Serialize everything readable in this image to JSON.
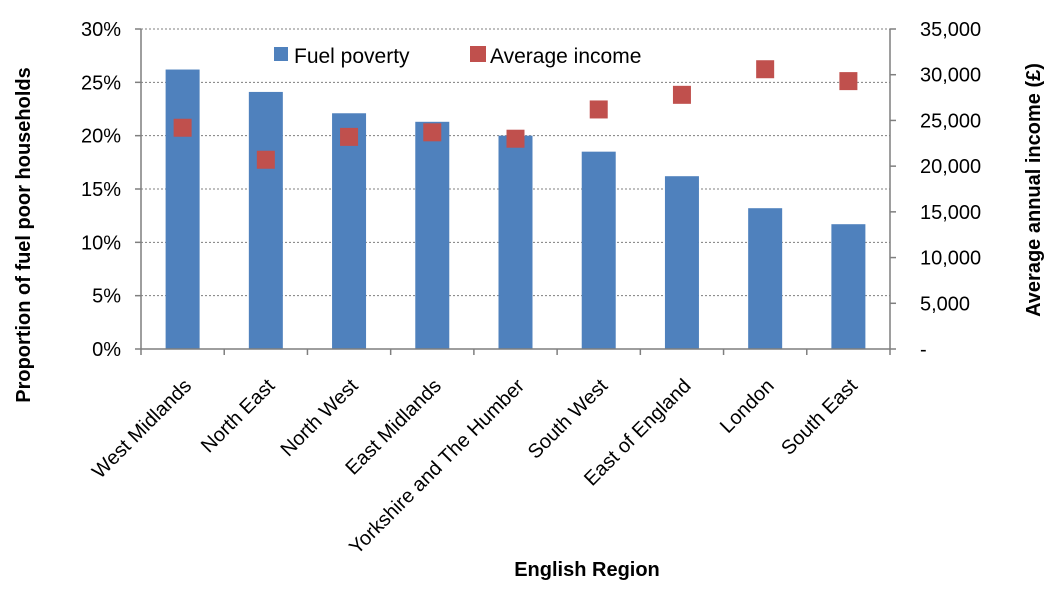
{
  "chart_data": {
    "type": "bar",
    "categories": [
      "West Midlands",
      "North East",
      "North West",
      "East Midlands",
      "Yorkshire and The  Humber",
      "South West",
      "East of England",
      "London",
      "South East"
    ],
    "series": [
      {
        "name": "Fuel poverty",
        "kind": "bar",
        "axis": "left",
        "color": "#4f81bd",
        "values": [
          0.262,
          0.241,
          0.221,
          0.213,
          0.2,
          0.185,
          0.162,
          0.132,
          0.117
        ]
      },
      {
        "name": "Average income",
        "kind": "marker",
        "axis": "right",
        "color": "#c0504d",
        "values": [
          24200,
          20700,
          23200,
          23700,
          23000,
          26200,
          27800,
          30600,
          29300
        ]
      }
    ],
    "xlabel": "English Region",
    "ylabel": "Proportion of fuel  poor households",
    "y2label": "Average annual  income (£)",
    "ylim": [
      0,
      0.3
    ],
    "y2lim": [
      0,
      35000
    ],
    "yticks": [
      "0%",
      "5%",
      "10%",
      "15%",
      "20%",
      "25%",
      "30%"
    ],
    "y2ticks": [
      "-",
      "5,000",
      "10,000",
      "15,000",
      "20,000",
      "25,000",
      "30,000",
      "35,000"
    ],
    "grid": true,
    "legend": "top"
  }
}
